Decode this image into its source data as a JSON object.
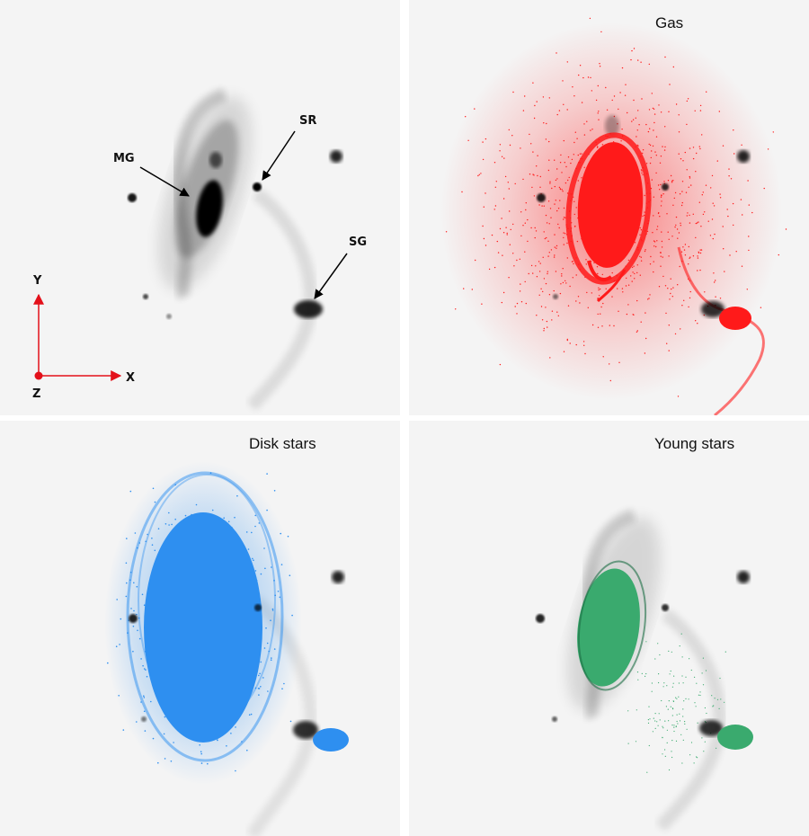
{
  "panels": [
    {
      "title": ""
    },
    {
      "title": "Gas"
    },
    {
      "title": "Disk stars"
    },
    {
      "title": "Young stars"
    }
  ],
  "labels": {
    "mg": "MG",
    "sr": "SR",
    "sg": "SG"
  },
  "axes": {
    "y": "Y",
    "x": "X",
    "z": "Z"
  },
  "colors": {
    "background": "#f4f4f4",
    "galaxy": "#111111",
    "gas": "#ff1a1a",
    "disk_stars": "#2e8ff0",
    "young_stars": "#3aaa6e",
    "axes": "#e3101a"
  }
}
